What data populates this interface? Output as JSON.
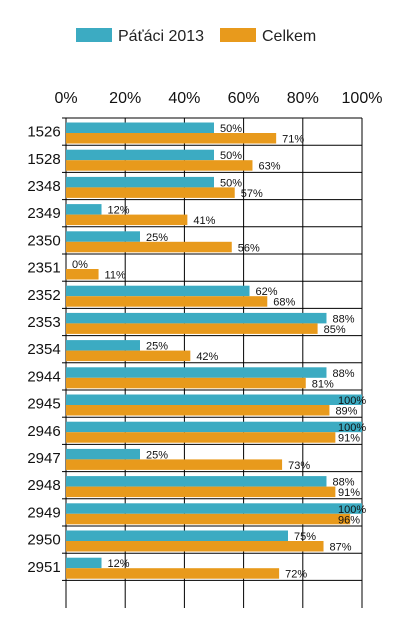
{
  "chart_data": {
    "type": "bar",
    "orientation": "horizontal",
    "categories": [
      "1526",
      "1528",
      "2348",
      "2349",
      "2350",
      "2351",
      "2352",
      "2353",
      "2354",
      "2944",
      "2945",
      "2946",
      "2947",
      "2948",
      "2949",
      "2950",
      "2951"
    ],
    "series": [
      {
        "name": "Páťáci 2013",
        "color": "#3cabc2",
        "values": [
          50,
          50,
          50,
          12,
          25,
          0,
          62,
          88,
          25,
          88,
          100,
          100,
          25,
          88,
          100,
          75,
          12
        ],
        "labels": [
          "50%",
          "50%",
          "50%",
          "12%",
          "25%",
          "0%",
          "62%",
          "88%",
          "25%",
          "88%",
          "100%",
          "100%",
          "25%",
          "88%",
          "100%",
          "75%",
          "12%"
        ]
      },
      {
        "name": "Celkem",
        "color": "#e89a1c",
        "values": [
          71,
          63,
          57,
          41,
          56,
          11,
          68,
          85,
          42,
          81,
          89,
          91,
          73,
          91,
          96,
          87,
          72
        ],
        "labels": [
          "71%",
          "63%",
          "57%",
          "41%",
          "56%",
          "11%",
          "68%",
          "85%",
          "42%",
          "81%",
          "89%",
          "91%",
          "73%",
          "91%",
          "96%",
          "87%",
          "72%"
        ]
      }
    ],
    "x_ticks": [
      "0%",
      "20%",
      "40%",
      "60%",
      "80%",
      "100%"
    ],
    "xlim": [
      0,
      100
    ],
    "grid": true,
    "legend_position": "top"
  }
}
